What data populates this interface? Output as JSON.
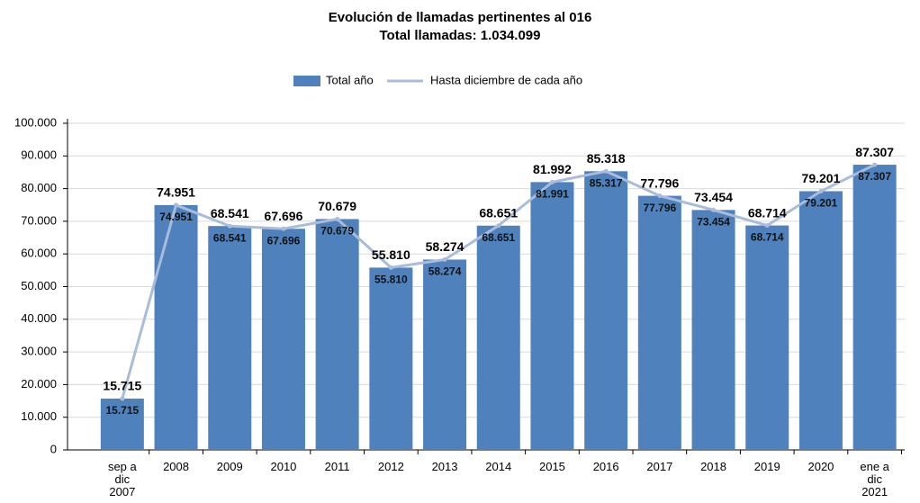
{
  "chart_data": {
    "type": "bar",
    "title": "Evolución de llamadas pertinentes al 016",
    "subtitle": "Total llamadas: 1.034.099",
    "categories": [
      [
        "sep a",
        "dic",
        "2007"
      ],
      [
        "2008"
      ],
      [
        "2009"
      ],
      [
        "2010"
      ],
      [
        "2011"
      ],
      [
        "2012"
      ],
      [
        "2013"
      ],
      [
        "2014"
      ],
      [
        "2015"
      ],
      [
        "2016"
      ],
      [
        "2017"
      ],
      [
        "2018"
      ],
      [
        "2019"
      ],
      [
        "2020"
      ],
      [
        "ene a",
        "dic",
        "2021"
      ]
    ],
    "series": [
      {
        "name": "Total año",
        "type": "bar",
        "color": "#4f81bd",
        "values": [
          15715,
          74951,
          68541,
          67696,
          70679,
          55810,
          58274,
          68651,
          81992,
          85318,
          77796,
          73454,
          68714,
          79201,
          87307
        ],
        "value_labels": [
          "15.715",
          "74.951",
          "68.541",
          "67.696",
          "70.679",
          "55.810",
          "58.274",
          "68.651",
          "81.992",
          "85.318",
          "77.796",
          "73.454",
          "68.714",
          "79.201",
          "87.307"
        ]
      },
      {
        "name": "Hasta diciembre de cada año",
        "type": "line",
        "color": "#a9bcdc",
        "values": [
          15715,
          74951,
          68541,
          67696,
          70679,
          55810,
          58274,
          68651,
          81991,
          85317,
          77796,
          73454,
          68714,
          79201,
          87307
        ],
        "value_labels": [
          "15.715",
          "74.951",
          "68.541",
          "67.696",
          "70.679",
          "55.810",
          "58.274",
          "68.651",
          "81.991",
          "85.317",
          "77.796",
          "73.454",
          "68.714",
          "79.201",
          "87.307"
        ]
      }
    ],
    "ylim": [
      0,
      100000
    ],
    "yticks": [
      0,
      {
        "value": 10000,
        "label": "10.000"
      },
      {
        "value": 20000,
        "label": "20.000"
      },
      {
        "value": 30000,
        "label": "30.000"
      },
      {
        "value": 40000,
        "label": "40.000"
      },
      {
        "value": 50000,
        "label": "50.000"
      },
      {
        "value": 60000,
        "label": "60.000"
      },
      {
        "value": 70000,
        "label": "70.000"
      },
      {
        "value": 80000,
        "label": "80.000"
      },
      {
        "value": 90000,
        "label": "90.000"
      },
      {
        "value": 100000,
        "label": "100.000"
      }
    ],
    "grid": true,
    "legend": "top"
  }
}
